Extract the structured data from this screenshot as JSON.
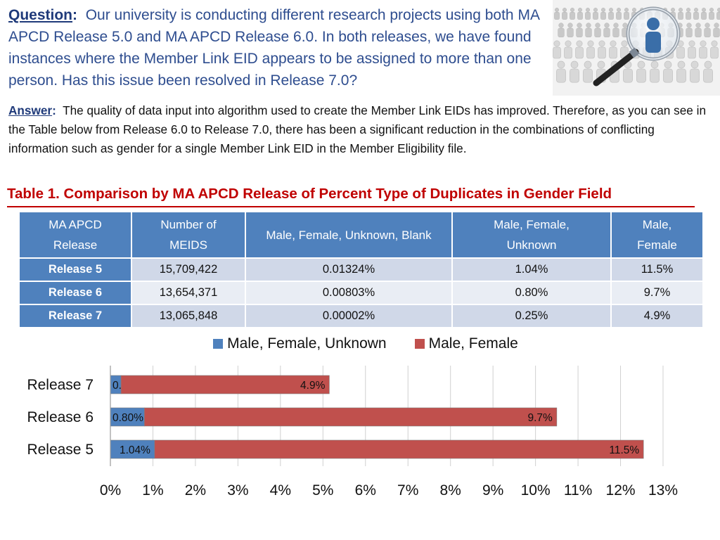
{
  "question": {
    "label": "Question",
    "text": "Our university is conducting different research projects using both MA APCD Release 5.0 and MA APCD Release 6.0. In both releases, we have found instances where the Member Link EID appears to be assigned to more than one person.  Has this issue been resolved in Release 7.0?"
  },
  "answer": {
    "label": "Answer",
    "text": "The quality of data input into algorithm used to create the Member Link EIDs has improved. Therefore, as you can see in the Table below from Release 6.0 to Release 7.0, there has been a significant reduction in the combinations of conflicting information such as gender for a single Member Link EID in the Member Eligibility file."
  },
  "illustration": {
    "icon": "magnifier-over-crowd-icon"
  },
  "table": {
    "title": "Table 1. Comparison by MA APCD Release of Percent Type of Duplicates in Gender Field",
    "headers": [
      "MA APCD Release",
      "Number of MEIDS",
      "Male, Female, Unknown, Blank",
      "Male, Female, Unknown",
      "Male, Female"
    ],
    "rows": [
      [
        "Release 5",
        "15,709,422",
        "0.01324%",
        "1.04%",
        "11.5%"
      ],
      [
        "Release 6",
        "13,654,371",
        "0.00803%",
        "0.80%",
        "9.7%"
      ],
      [
        "Release 7",
        "13,065,848",
        "0.00002%",
        "0.25%",
        "4.9%"
      ]
    ]
  },
  "chart_data": {
    "type": "bar",
    "orientation": "horizontal",
    "stacked": true,
    "categories": [
      "Release 7",
      "Release 6",
      "Release 5"
    ],
    "series": [
      {
        "name": "Male, Female, Unknown",
        "color": "#4f81bd",
        "values": [
          0.25,
          0.8,
          1.04
        ],
        "labels": [
          "0.25%",
          "0.80%",
          "1.04%"
        ]
      },
      {
        "name": "Male, Female",
        "color": "#c0504d",
        "values": [
          4.9,
          9.7,
          11.5
        ],
        "labels": [
          "4.9%",
          "9.7%",
          "11.5%"
        ]
      }
    ],
    "xlim": [
      0,
      13
    ],
    "xticks": [
      "0%",
      "1%",
      "2%",
      "3%",
      "4%",
      "5%",
      "6%",
      "7%",
      "8%",
      "9%",
      "10%",
      "11%",
      "12%",
      "13%"
    ],
    "grid": true,
    "legend": "top-center"
  }
}
